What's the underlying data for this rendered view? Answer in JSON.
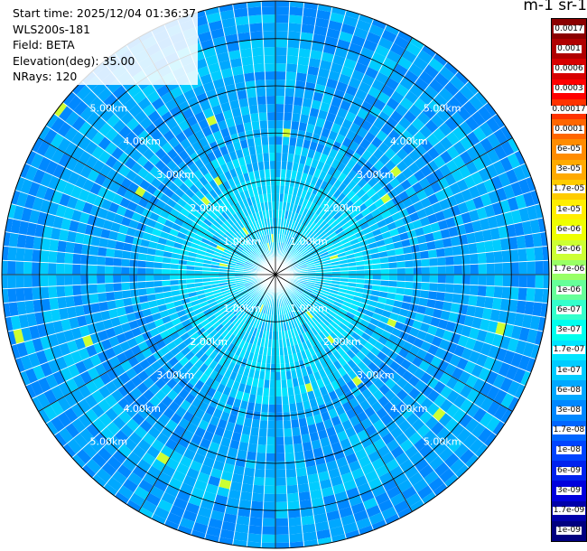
{
  "info": {
    "start_time": "Start time: 2025/12/04 01:36:37",
    "instrument": "WLS200s-181",
    "field": "Field: BETA",
    "elevation": "Elevation(deg): 35.00",
    "nrays": "NRays: 120"
  },
  "unit_label": "m-1 sr-1",
  "chart_data": {
    "type": "heatmap",
    "projection": "polar-ppi",
    "field": "BETA",
    "elevation_deg": 35.0,
    "n_rays": 120,
    "range_rings_km": [
      1.0,
      2.0,
      3.0,
      4.0,
      5.0
    ],
    "ring_labels": [
      "1.00km",
      "2.00km",
      "3.00km",
      "4.00km",
      "5.00km"
    ],
    "max_range_km": 5.8,
    "azimuth_lines_deg": [
      0,
      30,
      60,
      90,
      120,
      150,
      180,
      210,
      240,
      270,
      300,
      330
    ],
    "colorbar": {
      "scale": "log",
      "labels": [
        "0.0017",
        "0.001",
        "0.0006",
        "0.0003",
        "0.00017",
        "0.0001",
        "6e-05",
        "3e-05",
        "1.7e-05",
        "1e-05",
        "6e-06",
        "3e-06",
        "1.7e-06",
        "1e-06",
        "6e-07",
        "3e-07",
        "1.7e-07",
        "1e-07",
        "6e-08",
        "3e-08",
        "1.7e-08",
        "1e-08",
        "6e-09",
        "3e-09",
        "1.7e-09",
        "1e-09"
      ],
      "colors": [
        "#8b0000",
        "#b00000",
        "#d80000",
        "#ff0000",
        "#ff3300",
        "#ff6600",
        "#ff8c00",
        "#ffaa00",
        "#ffcc00",
        "#ffee00",
        "#eeff00",
        "#ccff33",
        "#99ff66",
        "#66ff99",
        "#33ffcc",
        "#00ffee",
        "#00e5ff",
        "#00ccff",
        "#00a8ff",
        "#0088ff",
        "#0066ff",
        "#0044ff",
        "#0022ee",
        "#0000dd",
        "#0000aa",
        "#000080"
      ]
    }
  }
}
